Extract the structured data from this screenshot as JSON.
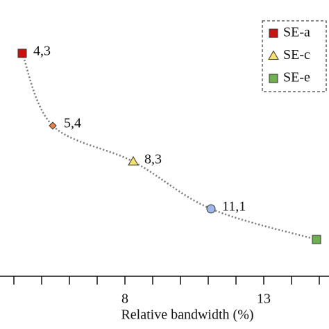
{
  "chart_data": {
    "type": "scatter",
    "xlabel": "Relative bandwidth (%)",
    "x": [
      4.3,
      5.4,
      8.3,
      11.1,
      14.9
    ],
    "values": [
      80.7,
      54.5,
      41.5,
      24.4,
      13.3
    ],
    "point_labels": [
      "4,3",
      "5,4",
      "8,3",
      "11,1",
      null
    ],
    "markers": [
      "square",
      "diamond",
      "triangle",
      "circle",
      "square"
    ],
    "colors": [
      "#cc1111",
      "#f08040",
      "#f5e070",
      "#a0b8e8",
      "#70b050"
    ],
    "line_color": "#777777",
    "xlim": [
      3.5,
      15.35
    ],
    "ylim": [
      0,
      100
    ],
    "xticks": [
      8,
      13
    ],
    "xminor_ticks": [
      4,
      5,
      6,
      7,
      9,
      10,
      11,
      12,
      14,
      15
    ],
    "legend": [
      {
        "name": "SE-a",
        "marker": "square",
        "color": "#cc1111"
      },
      {
        "name": "SE-c",
        "marker": "triangle",
        "color": "#f5e070"
      },
      {
        "name": "SE-e",
        "marker": "square",
        "color": "#70b050"
      }
    ],
    "legend_position": "upper right"
  }
}
